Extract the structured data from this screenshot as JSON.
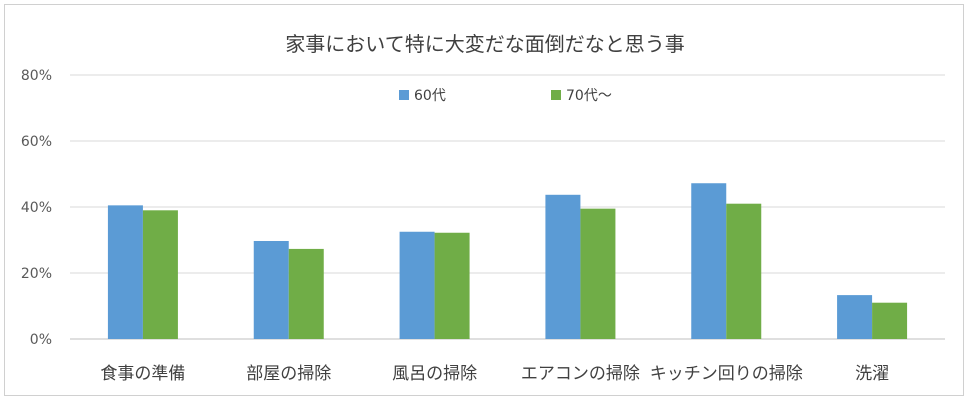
{
  "chart_data": {
    "type": "bar",
    "title": "家事において特に大変だな面倒だなと思う事",
    "categories": [
      "食事の準備",
      "部屋の掃除",
      "風呂の掃除",
      "エアコンの掃除",
      "キッチン回りの掃除",
      "洗濯"
    ],
    "series": [
      {
        "name": "60代",
        "color": "#5b9bd5",
        "values": [
          40.5,
          29.7,
          32.5,
          43.7,
          47.2,
          13.3
        ]
      },
      {
        "name": "70代～",
        "color": "#70ad47",
        "values": [
          39.0,
          27.3,
          32.2,
          39.5,
          41.0,
          11.0
        ]
      }
    ],
    "ylim": [
      0,
      80
    ],
    "yticks": [
      "0%",
      "20%",
      "40%",
      "60%",
      "80%"
    ],
    "ytick_values": [
      0,
      20,
      40,
      60,
      80
    ],
    "grid": true,
    "legend_position": "top"
  }
}
